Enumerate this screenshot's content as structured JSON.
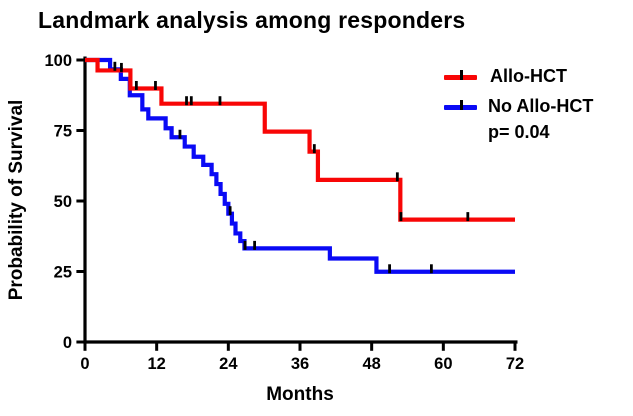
{
  "title": "Landmark analysis among responders",
  "y_axis": {
    "label": "Probability of Survival",
    "ticks": [
      0,
      25,
      50,
      75,
      100
    ]
  },
  "x_axis": {
    "label": "Months",
    "ticks": [
      0,
      12,
      24,
      36,
      48,
      60,
      72
    ]
  },
  "legend": {
    "items": [
      {
        "label": "Allo-HCT",
        "color": "#f80606"
      },
      {
        "label": "No Allo-HCT",
        "color": "#0a0af5"
      }
    ],
    "p_value": "p= 0.04"
  },
  "chart_data": {
    "type": "line",
    "subtype": "kaplan-meier-step",
    "title": "Landmark analysis among responders",
    "xlabel": "Months",
    "ylabel": "Probability of Survival",
    "xlim": [
      0,
      72
    ],
    "ylim": [
      0,
      100
    ],
    "x_ticks": [
      0,
      12,
      24,
      36,
      48,
      60,
      72
    ],
    "y_ticks": [
      0,
      25,
      50,
      75,
      100
    ],
    "grid": false,
    "legend_position": "top-right",
    "p_value_text": "p= 0.04",
    "series": [
      {
        "name": "Allo-HCT",
        "color": "#f80606",
        "end_month": 72,
        "steps": [
          [
            0,
            100
          ],
          [
            2.1,
            96.3
          ],
          [
            7.6,
            89.9
          ],
          [
            12.8,
            84.5
          ],
          [
            30.1,
            74.6
          ],
          [
            37.6,
            67.5
          ],
          [
            39,
            57.5
          ],
          [
            52.8,
            43.4
          ]
        ],
        "censor_marks": [
          [
            6.1,
            96.3
          ],
          [
            8.6,
            89.9
          ],
          [
            11.8,
            89.9
          ],
          [
            17,
            84.5
          ],
          [
            17.8,
            84.5
          ],
          [
            22.6,
            84.5
          ],
          [
            38.4,
            67.5
          ],
          [
            52.3,
            57.5
          ],
          [
            52.9,
            43.4
          ],
          [
            64.1,
            43.4
          ]
        ]
      },
      {
        "name": "No Allo-HCT",
        "color": "#0a0af5",
        "end_month": 72,
        "steps": [
          [
            0,
            100
          ],
          [
            4.2,
            96.7
          ],
          [
            6,
            93.3
          ],
          [
            7.5,
            87.5
          ],
          [
            9.6,
            82.5
          ],
          [
            10.6,
            79.3
          ],
          [
            13.5,
            75.8
          ],
          [
            14.5,
            72.6
          ],
          [
            16.7,
            69.3
          ],
          [
            18.2,
            65.7
          ],
          [
            19.8,
            62.8
          ],
          [
            21.2,
            59.5
          ],
          [
            22,
            56
          ],
          [
            22.7,
            52.5
          ],
          [
            23.4,
            49
          ],
          [
            24,
            45.5
          ],
          [
            24.6,
            42
          ],
          [
            25.2,
            38.5
          ],
          [
            26,
            35.8
          ],
          [
            26.7,
            33.2
          ],
          [
            41,
            29.6
          ],
          [
            48.8,
            24.9
          ]
        ],
        "censor_marks": [
          [
            5,
            96.7
          ],
          [
            15.9,
            72.6
          ],
          [
            24.3,
            45.5
          ],
          [
            26.8,
            33.2
          ],
          [
            28.4,
            33.2
          ],
          [
            51,
            24.9
          ],
          [
            58,
            24.9
          ]
        ]
      }
    ]
  }
}
